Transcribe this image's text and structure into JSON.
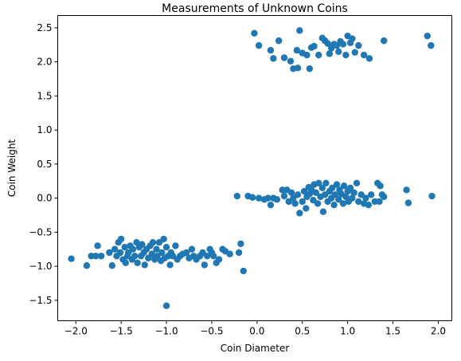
{
  "chart_data": {
    "type": "scatter",
    "title": "Measurements of Unknown Coins",
    "xlabel": "Coin Diameter",
    "ylabel": "Coin Weight",
    "xlim": [
      -2.2,
      2.15
    ],
    "ylim": [
      -1.8,
      2.68
    ],
    "xticks": [
      -2.0,
      -1.5,
      -1.0,
      -0.5,
      0.0,
      0.5,
      1.0,
      1.5,
      2.0
    ],
    "xtick_labels": [
      "−2.0",
      "−1.5",
      "−1.0",
      "−0.5",
      "0.0",
      "0.5",
      "1.0",
      "1.5",
      "2.0"
    ],
    "yticks": [
      -1.5,
      -1.0,
      -0.5,
      0.0,
      0.5,
      1.0,
      1.5,
      2.0,
      2.5
    ],
    "ytick_labels": [
      "−1.5",
      "−1.0",
      "−0.5",
      "0.0",
      "0.5",
      "1.0",
      "1.5",
      "2.0",
      "2.5"
    ],
    "grid": false,
    "legend": "none",
    "marker_color": "#1f77b4",
    "series": [
      {
        "points": [
          [
            -0.03,
            2.42
          ],
          [
            0.02,
            2.24
          ],
          [
            0.15,
            2.17
          ],
          [
            0.18,
            2.05
          ],
          [
            0.24,
            2.31
          ],
          [
            0.3,
            2.06
          ],
          [
            0.37,
            2.01
          ],
          [
            0.4,
            1.9
          ],
          [
            0.44,
            2.17
          ],
          [
            0.45,
            1.91
          ],
          [
            0.47,
            2.46
          ],
          [
            0.5,
            2.13
          ],
          [
            0.55,
            2.1
          ],
          [
            0.58,
            1.9
          ],
          [
            0.6,
            2.21
          ],
          [
            0.63,
            2.23
          ],
          [
            0.68,
            2.1
          ],
          [
            0.72,
            2.35
          ],
          [
            0.75,
            2.31
          ],
          [
            0.78,
            2.27
          ],
          [
            0.8,
            2.12
          ],
          [
            0.82,
            2.2
          ],
          [
            0.85,
            2.26
          ],
          [
            0.88,
            2.24
          ],
          [
            0.9,
            2.15
          ],
          [
            0.92,
            2.3
          ],
          [
            0.95,
            2.26
          ],
          [
            0.98,
            2.1
          ],
          [
            1.0,
            2.38
          ],
          [
            1.03,
            2.28
          ],
          [
            1.05,
            2.34
          ],
          [
            1.08,
            2.14
          ],
          [
            1.12,
            2.24
          ],
          [
            1.18,
            2.1
          ],
          [
            1.24,
            2.05
          ],
          [
            1.4,
            2.31
          ],
          [
            1.88,
            2.38
          ],
          [
            1.92,
            2.24
          ],
          [
            -0.22,
            0.03
          ],
          [
            -0.1,
            0.03
          ],
          [
            -0.05,
            0.01
          ],
          [
            0.02,
            0.0
          ],
          [
            0.08,
            -0.02
          ],
          [
            0.12,
            0.0
          ],
          [
            0.15,
            -0.1
          ],
          [
            0.18,
            0.0
          ],
          [
            0.22,
            -0.02
          ],
          [
            0.28,
            0.12
          ],
          [
            0.3,
            0.03
          ],
          [
            0.33,
            0.12
          ],
          [
            0.35,
            -0.05
          ],
          [
            0.38,
            0.08
          ],
          [
            0.4,
            0.0
          ],
          [
            0.42,
            -0.08
          ],
          [
            0.45,
            0.05
          ],
          [
            0.47,
            -0.22
          ],
          [
            0.5,
            -0.05
          ],
          [
            0.52,
            0.1
          ],
          [
            0.54,
            -0.15
          ],
          [
            0.55,
            0.02
          ],
          [
            0.57,
            0.16
          ],
          [
            0.58,
            0.06
          ],
          [
            0.6,
            0.12
          ],
          [
            0.62,
            -0.03
          ],
          [
            0.63,
            0.2
          ],
          [
            0.65,
            0.08
          ],
          [
            0.67,
            -0.08
          ],
          [
            0.68,
            0.22
          ],
          [
            0.7,
            0.02
          ],
          [
            0.72,
            0.15
          ],
          [
            0.73,
            -0.2
          ],
          [
            0.75,
            0.05
          ],
          [
            0.76,
            0.22
          ],
          [
            0.78,
            -0.05
          ],
          [
            0.8,
            0.1
          ],
          [
            0.82,
            0.0
          ],
          [
            0.83,
            0.15
          ],
          [
            0.85,
            -0.1
          ],
          [
            0.86,
            0.05
          ],
          [
            0.88,
            0.2
          ],
          [
            0.9,
            -0.02
          ],
          [
            0.91,
            0.12
          ],
          [
            0.93,
            0.06
          ],
          [
            0.95,
            -0.08
          ],
          [
            0.96,
            0.18
          ],
          [
            0.98,
            0.02
          ],
          [
            1.0,
            0.1
          ],
          [
            1.01,
            -0.05
          ],
          [
            1.03,
            0.15
          ],
          [
            1.05,
            0.0
          ],
          [
            1.07,
            0.08
          ],
          [
            1.1,
            0.22
          ],
          [
            1.12,
            -0.05
          ],
          [
            1.15,
            0.05
          ],
          [
            1.18,
            -0.08
          ],
          [
            1.2,
            0.0
          ],
          [
            1.23,
            -0.1
          ],
          [
            1.26,
            0.05
          ],
          [
            1.3,
            -0.05
          ],
          [
            1.33,
            0.22
          ],
          [
            1.35,
            -0.05
          ],
          [
            1.36,
            0.18
          ],
          [
            1.38,
            0.05
          ],
          [
            1.4,
            0.02
          ],
          [
            1.65,
            0.12
          ],
          [
            1.67,
            -0.07
          ],
          [
            1.93,
            0.03
          ],
          [
            -2.05,
            -0.89
          ],
          [
            -1.88,
            -0.99
          ],
          [
            -1.83,
            -0.85
          ],
          [
            -1.78,
            -0.85
          ],
          [
            -1.76,
            -0.7
          ],
          [
            -1.72,
            -0.85
          ],
          [
            -1.63,
            -0.8
          ],
          [
            -1.6,
            -0.99
          ],
          [
            -1.57,
            -0.75
          ],
          [
            -1.55,
            -0.85
          ],
          [
            -1.53,
            -0.65
          ],
          [
            -1.51,
            -0.8
          ],
          [
            -1.5,
            -0.6
          ],
          [
            -1.48,
            -0.9
          ],
          [
            -1.46,
            -0.72
          ],
          [
            -1.45,
            -0.95
          ],
          [
            -1.43,
            -0.85
          ],
          [
            -1.42,
            -0.8
          ],
          [
            -1.4,
            -0.7
          ],
          [
            -1.38,
            -0.9
          ],
          [
            -1.37,
            -0.75
          ],
          [
            -1.35,
            -0.85
          ],
          [
            -1.33,
            -0.65
          ],
          [
            -1.32,
            -0.95
          ],
          [
            -1.3,
            -0.72
          ],
          [
            -1.28,
            -0.85
          ],
          [
            -1.27,
            -0.68
          ],
          [
            -1.25,
            -0.8
          ],
          [
            -1.24,
            -0.98
          ],
          [
            -1.22,
            -0.75
          ],
          [
            -1.2,
            -0.88
          ],
          [
            -1.18,
            -0.7
          ],
          [
            -1.16,
            -0.82
          ],
          [
            -1.15,
            -0.65
          ],
          [
            -1.13,
            -0.9
          ],
          [
            -1.11,
            -0.75
          ],
          [
            -1.1,
            -0.85
          ],
          [
            -1.08,
            -0.65
          ],
          [
            -1.06,
            -0.92
          ],
          [
            -1.05,
            -0.8
          ],
          [
            -1.03,
            -0.6
          ],
          [
            -1.02,
            -0.88
          ],
          [
            -1.0,
            -0.72
          ],
          [
            -0.98,
            -0.85
          ],
          [
            -0.96,
            -0.98
          ],
          [
            -0.95,
            -0.8
          ],
          [
            -0.93,
            -0.85
          ],
          [
            -0.9,
            -0.7
          ],
          [
            -0.88,
            -0.9
          ],
          [
            -0.85,
            -0.85
          ],
          [
            -0.82,
            -0.82
          ],
          [
            -0.78,
            -0.8
          ],
          [
            -0.75,
            -0.88
          ],
          [
            -0.72,
            -0.75
          ],
          [
            -0.7,
            -0.85
          ],
          [
            -0.67,
            -0.9
          ],
          [
            -0.63,
            -0.85
          ],
          [
            -0.6,
            -0.8
          ],
          [
            -0.58,
            -0.98
          ],
          [
            -0.55,
            -0.85
          ],
          [
            -0.52,
            -0.75
          ],
          [
            -0.5,
            -0.8
          ],
          [
            -0.48,
            -0.85
          ],
          [
            -0.45,
            -0.95
          ],
          [
            -0.42,
            -0.9
          ],
          [
            -0.38,
            -0.75
          ],
          [
            -0.35,
            -0.78
          ],
          [
            -0.3,
            -0.82
          ],
          [
            -0.2,
            -0.8
          ],
          [
            -0.18,
            -0.67
          ],
          [
            -0.15,
            -1.07
          ],
          [
            -1.0,
            -1.58
          ]
        ]
      }
    ]
  }
}
